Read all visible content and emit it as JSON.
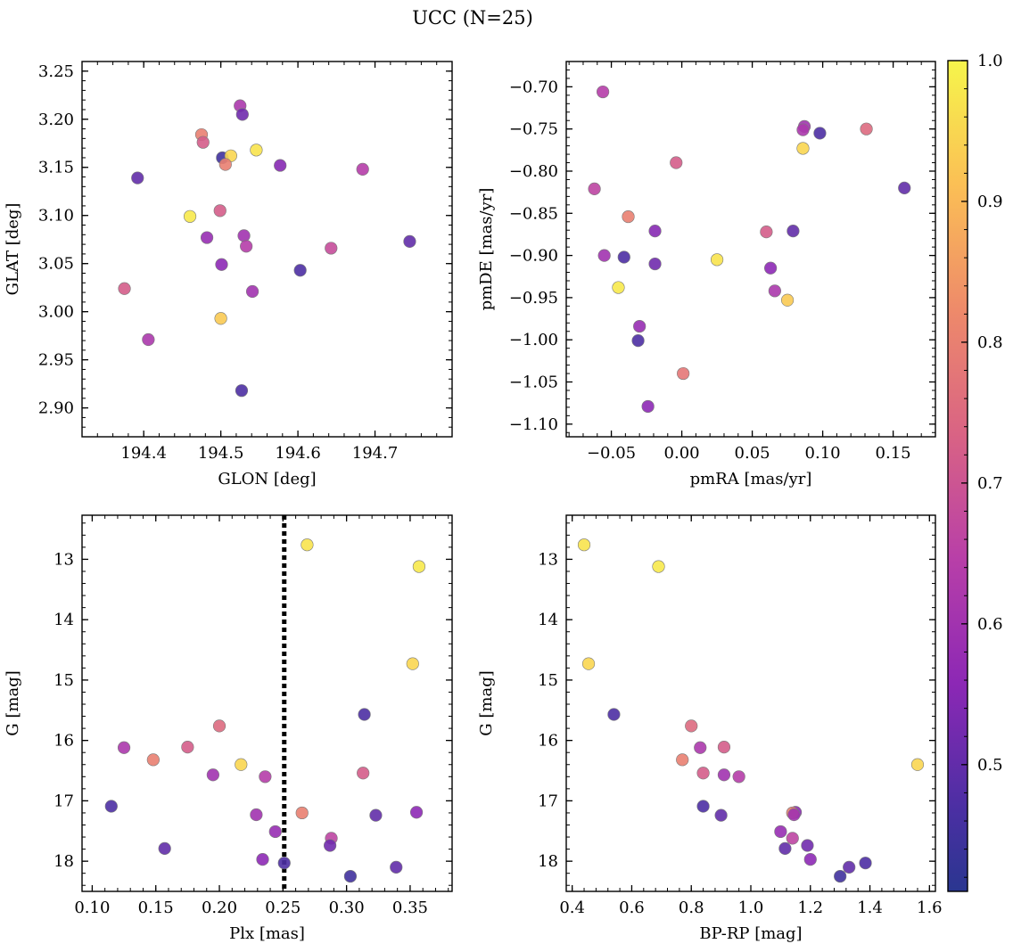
{
  "figure_title": "UCC (N=25)",
  "colorbar": {
    "range": [
      0.41,
      1.0
    ],
    "ticks": [
      0.5,
      0.6,
      0.7,
      0.8,
      0.9,
      1.0
    ],
    "tick_labels": [
      "0.5",
      "0.6",
      "0.7",
      "0.8",
      "0.9",
      "1.0"
    ],
    "colormap": "plasma"
  },
  "chart_data": [
    {
      "type": "scatter",
      "name": "glon-glat",
      "xlabel": "GLON [deg]",
      "ylabel": "GLAT [deg]",
      "xlim": [
        194.32,
        194.8
      ],
      "ylim": [
        2.87,
        3.26
      ],
      "xticks": [
        194.4,
        194.5,
        194.6,
        194.7
      ],
      "xtick_labels": [
        "194.4",
        "194.5",
        "194.6",
        "194.7"
      ],
      "yticks": [
        2.9,
        2.95,
        3.0,
        3.05,
        3.1,
        3.15,
        3.2,
        3.25
      ],
      "ytick_labels": [
        "2.90",
        "2.95",
        "3.00",
        "3.05",
        "3.10",
        "3.15",
        "3.20",
        "3.25"
      ],
      "x": [
        194.525,
        194.528,
        194.475,
        194.477,
        194.502,
        194.513,
        194.506,
        194.546,
        194.577,
        194.684,
        194.392,
        194.46,
        194.499,
        194.482,
        194.53,
        194.533,
        194.745,
        194.643,
        194.501,
        194.603,
        194.375,
        194.541,
        194.5,
        194.406,
        194.527
      ],
      "y": [
        3.214,
        3.205,
        3.184,
        3.176,
        3.16,
        3.162,
        3.153,
        3.168,
        3.152,
        3.148,
        3.139,
        3.099,
        3.105,
        3.077,
        3.079,
        3.068,
        3.073,
        3.066,
        3.049,
        3.043,
        3.024,
        3.021,
        2.993,
        2.971,
        2.918
      ],
      "c": [
        0.62,
        0.52,
        0.8,
        0.72,
        0.45,
        0.95,
        0.8,
        0.97,
        0.55,
        0.64,
        0.5,
        0.98,
        0.72,
        0.58,
        0.6,
        0.64,
        0.5,
        0.68,
        0.56,
        0.47,
        0.72,
        0.6,
        0.93,
        0.62,
        0.47
      ]
    },
    {
      "type": "scatter",
      "name": "pmra-pmde",
      "xlabel": "pmRA [mas/yr]",
      "ylabel": "pmDE [mas/yr]",
      "xlim": [
        -0.082,
        0.18
      ],
      "ylim": [
        -1.115,
        -0.67
      ],
      "xticks": [
        -0.05,
        0.0,
        0.05,
        0.1,
        0.15
      ],
      "xtick_labels": [
        "−0.05",
        "0.00",
        "0.05",
        "0.10",
        "0.15"
      ],
      "yticks": [
        -1.1,
        -1.05,
        -1.0,
        -0.95,
        -0.9,
        -0.85,
        -0.8,
        -0.75,
        -0.7
      ],
      "ytick_labels": [
        "−1.10",
        "−1.05",
        "−1.00",
        "−0.95",
        "−0.90",
        "−0.85",
        "−0.80",
        "−0.75",
        "−0.70"
      ],
      "x": [
        -0.056,
        0.087,
        0.086,
        0.098,
        0.131,
        0.086,
        -0.004,
        -0.062,
        0.158,
        -0.038,
        -0.019,
        0.06,
        0.079,
        -0.055,
        -0.041,
        -0.019,
        0.025,
        0.063,
        -0.045,
        0.066,
        0.075,
        -0.03,
        -0.031,
        0.001,
        -0.024
      ],
      "y": [
        -0.706,
        -0.747,
        -0.751,
        -0.755,
        -0.75,
        -0.773,
        -0.79,
        -0.821,
        -0.82,
        -0.854,
        -0.871,
        -0.872,
        -0.871,
        -0.9,
        -0.902,
        -0.91,
        -0.905,
        -0.915,
        -0.938,
        -0.942,
        -0.953,
        -0.984,
        -1.001,
        -1.04,
        -1.079
      ],
      "c": [
        0.64,
        0.6,
        0.62,
        0.47,
        0.75,
        0.95,
        0.72,
        0.66,
        0.5,
        0.8,
        0.55,
        0.72,
        0.5,
        0.6,
        0.47,
        0.52,
        0.97,
        0.56,
        0.98,
        0.62,
        0.93,
        0.58,
        0.47,
        0.78,
        0.56
      ]
    },
    {
      "type": "scatter",
      "name": "plx-g",
      "xlabel": "Plx [mas]",
      "ylabel": "G [mag]",
      "xlim": [
        0.092,
        0.383
      ],
      "ylim": [
        18.5,
        12.27
      ],
      "y_inverted": true,
      "xticks": [
        0.1,
        0.15,
        0.2,
        0.25,
        0.3,
        0.35
      ],
      "xtick_labels": [
        "0.10",
        "0.15",
        "0.20",
        "0.25",
        "0.30",
        "0.35"
      ],
      "yticks": [
        13,
        14,
        15,
        16,
        17,
        18
      ],
      "ytick_labels": [
        "13",
        "14",
        "15",
        "16",
        "17",
        "18"
      ],
      "vline_x": 0.251,
      "x": [
        0.269,
        0.357,
        0.352,
        0.314,
        0.2,
        0.125,
        0.175,
        0.148,
        0.217,
        0.195,
        0.236,
        0.313,
        0.115,
        0.355,
        0.265,
        0.229,
        0.323,
        0.244,
        0.288,
        0.287,
        0.157,
        0.234,
        0.251,
        0.339,
        0.303
      ],
      "y": [
        12.76,
        13.12,
        14.73,
        15.57,
        15.76,
        16.12,
        16.11,
        16.32,
        16.4,
        16.57,
        16.6,
        16.54,
        17.09,
        17.19,
        17.2,
        17.23,
        17.24,
        17.51,
        17.62,
        17.74,
        17.79,
        17.97,
        18.03,
        18.1,
        18.25
      ],
      "c": [
        0.97,
        0.98,
        0.95,
        0.47,
        0.75,
        0.62,
        0.72,
        0.8,
        0.95,
        0.6,
        0.64,
        0.72,
        0.47,
        0.56,
        0.8,
        0.6,
        0.5,
        0.58,
        0.66,
        0.52,
        0.5,
        0.56,
        0.47,
        0.5,
        0.45
      ]
    },
    {
      "type": "scatter",
      "name": "bprp-g",
      "xlabel": "BP-RP [mag]",
      "ylabel": "G [mag]",
      "xlim": [
        0.38,
        1.62
      ],
      "ylim": [
        18.5,
        12.27
      ],
      "y_inverted": true,
      "xticks": [
        0.4,
        0.6,
        0.8,
        1.0,
        1.2,
        1.4,
        1.6
      ],
      "xtick_labels": [
        "0.4",
        "0.6",
        "0.8",
        "1.0",
        "1.2",
        "1.4",
        "1.6"
      ],
      "yticks": [
        13,
        14,
        15,
        16,
        17,
        18
      ],
      "ytick_labels": [
        "13",
        "14",
        "15",
        "16",
        "17",
        "18"
      ],
      "x": [
        0.44,
        0.69,
        0.455,
        0.54,
        0.8,
        0.83,
        0.91,
        0.77,
        1.56,
        0.91,
        0.96,
        0.84,
        0.84,
        1.15,
        1.14,
        1.145,
        0.9,
        1.1,
        1.14,
        1.19,
        1.115,
        1.2,
        1.385,
        1.33,
        1.3
      ],
      "y": [
        12.76,
        13.12,
        14.73,
        15.57,
        15.76,
        16.12,
        16.11,
        16.32,
        16.4,
        16.57,
        16.6,
        16.54,
        17.09,
        17.19,
        17.2,
        17.23,
        17.24,
        17.51,
        17.62,
        17.74,
        17.79,
        17.97,
        18.03,
        18.1,
        18.25
      ],
      "c": [
        0.97,
        0.98,
        0.95,
        0.47,
        0.75,
        0.62,
        0.72,
        0.8,
        0.95,
        0.6,
        0.64,
        0.72,
        0.47,
        0.56,
        0.8,
        0.6,
        0.5,
        0.58,
        0.66,
        0.52,
        0.5,
        0.56,
        0.47,
        0.5,
        0.45
      ]
    }
  ]
}
